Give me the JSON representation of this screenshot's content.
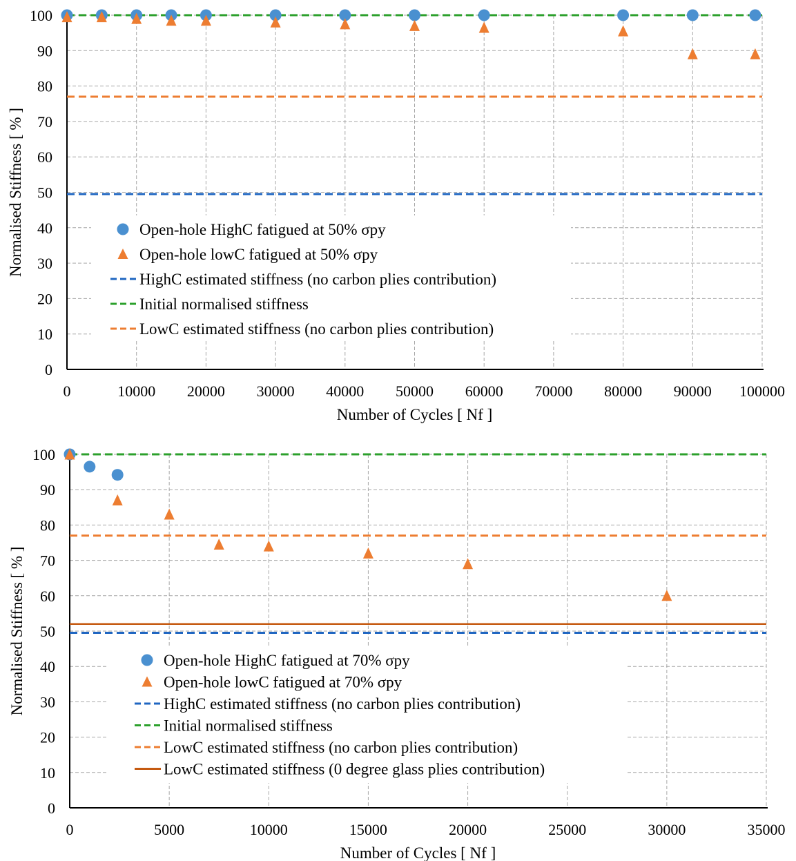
{
  "chart_data": [
    {
      "type": "scatter",
      "title": "",
      "xlabel": "Number of Cycles [ Nf ]",
      "ylabel": "Normalised Stiffness [ % ]",
      "xlim": [
        0,
        100000
      ],
      "ylim": [
        0,
        100
      ],
      "xticks": [
        0,
        10000,
        20000,
        30000,
        40000,
        50000,
        60000,
        70000,
        80000,
        90000,
        100000
      ],
      "yticks": [
        0,
        10,
        20,
        30,
        40,
        50,
        60,
        70,
        80,
        90,
        100
      ],
      "grid": true,
      "legend_position": "left-center",
      "series": [
        {
          "name": "Open-hole HighC fatigued at 50% σpy",
          "kind": "points",
          "marker": "circle",
          "color": "#4a90d0",
          "x": [
            0,
            5000,
            10000,
            15000,
            20000,
            30000,
            40000,
            50000,
            60000,
            80000,
            90000,
            99000
          ],
          "y": [
            100,
            100,
            100,
            100,
            100,
            100,
            100,
            100,
            100,
            100,
            100,
            100
          ]
        },
        {
          "name": "Open-hole lowC fatigued at 50% σpy",
          "kind": "points",
          "marker": "triangle",
          "color": "#ed7d31",
          "x": [
            0,
            5000,
            10000,
            15000,
            20000,
            30000,
            40000,
            50000,
            60000,
            80000,
            90000,
            99000
          ],
          "y": [
            99.5,
            99.5,
            99,
            98.5,
            98.5,
            98,
            97.5,
            97,
            96.5,
            95.5,
            89,
            89
          ]
        },
        {
          "name": "HighC estimated stiffness (no carbon plies contribution)",
          "kind": "hline",
          "style": "dash",
          "color": "#1f66c1",
          "y": 49.5
        },
        {
          "name": "Initial normalised stiffness",
          "kind": "hline",
          "style": "dash",
          "color": "#2ca02c",
          "y": 100
        },
        {
          "name": "LowC estimated stiffness (no carbon plies contribution)",
          "kind": "hline",
          "style": "dash",
          "color": "#ed7d31",
          "y": 77
        }
      ]
    },
    {
      "type": "scatter",
      "title": "",
      "xlabel": "Number of Cycles [ Nf ]",
      "ylabel": "Normalised Stiffness [ % ]",
      "xlim": [
        0,
        35000
      ],
      "ylim": [
        0,
        100
      ],
      "xticks": [
        0,
        5000,
        10000,
        15000,
        20000,
        25000,
        30000,
        35000
      ],
      "yticks": [
        0,
        10,
        20,
        30,
        40,
        50,
        60,
        70,
        80,
        90,
        100
      ],
      "grid": true,
      "legend_position": "left-center",
      "series": [
        {
          "name": "Open-hole HighC fatigued at 70% σpy",
          "kind": "points",
          "marker": "circle",
          "color": "#4a90d0",
          "x": [
            0,
            1000,
            2400
          ],
          "y": [
            100,
            96.5,
            94.2
          ]
        },
        {
          "name": "Open-hole lowC fatigued at 70% σpy",
          "kind": "points",
          "marker": "triangle",
          "color": "#ed7d31",
          "x": [
            0,
            2400,
            5000,
            7500,
            10000,
            15000,
            20000,
            30000
          ],
          "y": [
            100,
            87,
            83,
            74.5,
            74,
            72,
            69,
            60
          ]
        },
        {
          "name": "HighC estimated stiffness (no carbon plies contribution)",
          "kind": "hline",
          "style": "dash",
          "color": "#1f66c1",
          "y": 49.5
        },
        {
          "name": "Initial normalised stiffness",
          "kind": "hline",
          "style": "dash",
          "color": "#2ca02c",
          "y": 100
        },
        {
          "name": "LowC estimated stiffness (no carbon plies contribution)",
          "kind": "hline",
          "style": "dash",
          "color": "#ed7d31",
          "y": 77
        },
        {
          "name": "LowC estimated stiffness (0 degree glass plies contribution)",
          "kind": "hline",
          "style": "solid",
          "color": "#c55a11",
          "y": 52
        }
      ]
    }
  ]
}
